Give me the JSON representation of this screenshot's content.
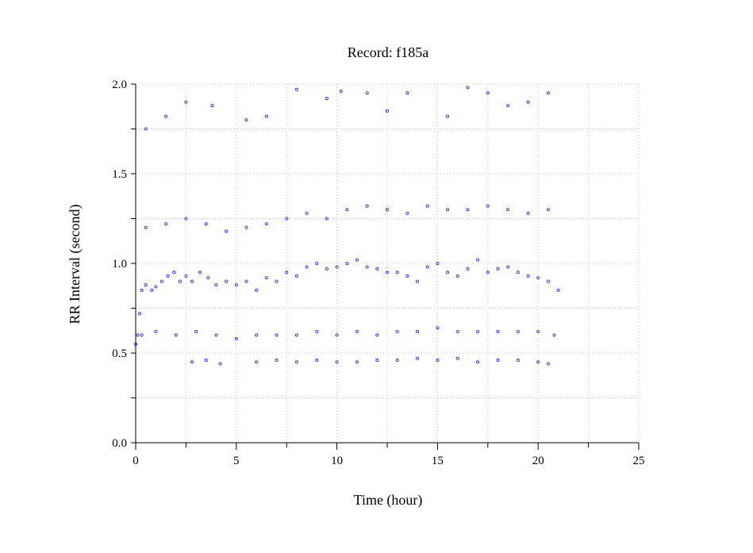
{
  "chart_data": {
    "type": "scatter",
    "title": "Record:  f185a",
    "xlabel": "Time (hour)",
    "ylabel": "RR Interval (second)",
    "xlim": [
      0,
      25
    ],
    "ylim": [
      0,
      2.0
    ],
    "x_ticks": [
      "0",
      "5",
      "10",
      "15",
      "20",
      "25"
    ],
    "y_ticks": [
      "0.0",
      "0.5",
      "1.0",
      "1.5",
      "2.0"
    ],
    "grid": true,
    "color": "#1a1aff",
    "marker": "open-circle",
    "series": [
      {
        "points": [
          [
            0.0,
            0.55
          ],
          [
            0.1,
            0.6
          ],
          [
            0.2,
            0.72
          ],
          [
            0.3,
            0.85
          ],
          [
            0.5,
            0.88
          ],
          [
            0.8,
            0.85
          ],
          [
            1.0,
            0.87
          ],
          [
            1.3,
            0.9
          ],
          [
            1.6,
            0.93
          ],
          [
            1.9,
            0.95
          ],
          [
            2.2,
            0.9
          ],
          [
            2.5,
            0.93
          ],
          [
            2.8,
            0.9
          ],
          [
            3.2,
            0.95
          ],
          [
            3.6,
            0.92
          ],
          [
            4.0,
            0.88
          ],
          [
            4.5,
            0.9
          ],
          [
            5.0,
            0.88
          ],
          [
            5.5,
            0.9
          ],
          [
            6.0,
            0.85
          ],
          [
            6.5,
            0.92
          ],
          [
            7.0,
            0.9
          ],
          [
            7.5,
            0.95
          ],
          [
            8.0,
            0.93
          ],
          [
            8.5,
            0.98
          ],
          [
            9.0,
            1.0
          ],
          [
            9.5,
            0.97
          ],
          [
            10.0,
            0.98
          ],
          [
            10.5,
            1.0
          ],
          [
            11.0,
            1.02
          ],
          [
            11.5,
            0.98
          ],
          [
            12.0,
            0.97
          ],
          [
            12.5,
            0.95
          ],
          [
            13.0,
            0.95
          ],
          [
            13.5,
            0.93
          ],
          [
            14.0,
            0.9
          ],
          [
            14.5,
            0.98
          ],
          [
            15.0,
            1.0
          ],
          [
            15.5,
            0.95
          ],
          [
            16.0,
            0.93
          ],
          [
            16.5,
            0.97
          ],
          [
            17.0,
            1.02
          ],
          [
            17.5,
            0.95
          ],
          [
            18.0,
            0.97
          ],
          [
            18.5,
            0.98
          ],
          [
            19.0,
            0.95
          ],
          [
            19.5,
            0.93
          ],
          [
            20.0,
            0.92
          ],
          [
            20.5,
            0.9
          ],
          [
            21.0,
            0.85
          ],
          [
            0.3,
            0.6
          ],
          [
            1.0,
            0.62
          ],
          [
            2.0,
            0.6
          ],
          [
            3.0,
            0.62
          ],
          [
            4.0,
            0.6
          ],
          [
            5.0,
            0.58
          ],
          [
            6.0,
            0.6
          ],
          [
            7.0,
            0.6
          ],
          [
            8.0,
            0.6
          ],
          [
            9.0,
            0.62
          ],
          [
            10.0,
            0.6
          ],
          [
            11.0,
            0.62
          ],
          [
            12.0,
            0.6
          ],
          [
            13.0,
            0.62
          ],
          [
            14.0,
            0.62
          ],
          [
            15.0,
            0.64
          ],
          [
            16.0,
            0.62
          ],
          [
            17.0,
            0.62
          ],
          [
            18.0,
            0.62
          ],
          [
            19.0,
            0.62
          ],
          [
            20.0,
            0.62
          ],
          [
            20.8,
            0.6
          ],
          [
            0.5,
            1.2
          ],
          [
            1.5,
            1.22
          ],
          [
            2.5,
            1.25
          ],
          [
            3.5,
            1.22
          ],
          [
            4.5,
            1.18
          ],
          [
            5.5,
            1.2
          ],
          [
            6.5,
            1.22
          ],
          [
            7.5,
            1.25
          ],
          [
            8.5,
            1.28
          ],
          [
            9.5,
            1.25
          ],
          [
            10.5,
            1.3
          ],
          [
            11.5,
            1.32
          ],
          [
            12.5,
            1.3
          ],
          [
            13.5,
            1.28
          ],
          [
            14.5,
            1.32
          ],
          [
            15.5,
            1.3
          ],
          [
            16.5,
            1.3
          ],
          [
            17.5,
            1.32
          ],
          [
            18.5,
            1.3
          ],
          [
            19.5,
            1.28
          ],
          [
            20.5,
            1.3
          ],
          [
            2.8,
            0.45
          ],
          [
            3.5,
            0.46
          ],
          [
            4.2,
            0.44
          ],
          [
            6.0,
            0.45
          ],
          [
            7.0,
            0.46
          ],
          [
            8.0,
            0.45
          ],
          [
            9.0,
            0.46
          ],
          [
            10.0,
            0.45
          ],
          [
            11.0,
            0.45
          ],
          [
            12.0,
            0.46
          ],
          [
            13.0,
            0.46
          ],
          [
            14.0,
            0.47
          ],
          [
            15.0,
            0.46
          ],
          [
            16.0,
            0.47
          ],
          [
            17.0,
            0.45
          ],
          [
            18.0,
            0.46
          ],
          [
            19.0,
            0.46
          ],
          [
            20.0,
            0.45
          ],
          [
            20.5,
            0.44
          ],
          [
            0.5,
            1.75
          ],
          [
            1.5,
            1.82
          ],
          [
            2.5,
            1.9
          ],
          [
            3.8,
            1.88
          ],
          [
            5.5,
            1.8
          ],
          [
            6.5,
            1.82
          ],
          [
            8.0,
            1.97
          ],
          [
            9.5,
            1.92
          ],
          [
            10.2,
            1.96
          ],
          [
            11.5,
            1.95
          ],
          [
            12.5,
            1.85
          ],
          [
            13.5,
            1.95
          ],
          [
            15.5,
            1.82
          ],
          [
            16.5,
            1.98
          ],
          [
            17.5,
            1.95
          ],
          [
            18.5,
            1.88
          ],
          [
            19.5,
            1.9
          ],
          [
            20.5,
            1.95
          ]
        ]
      }
    ]
  }
}
